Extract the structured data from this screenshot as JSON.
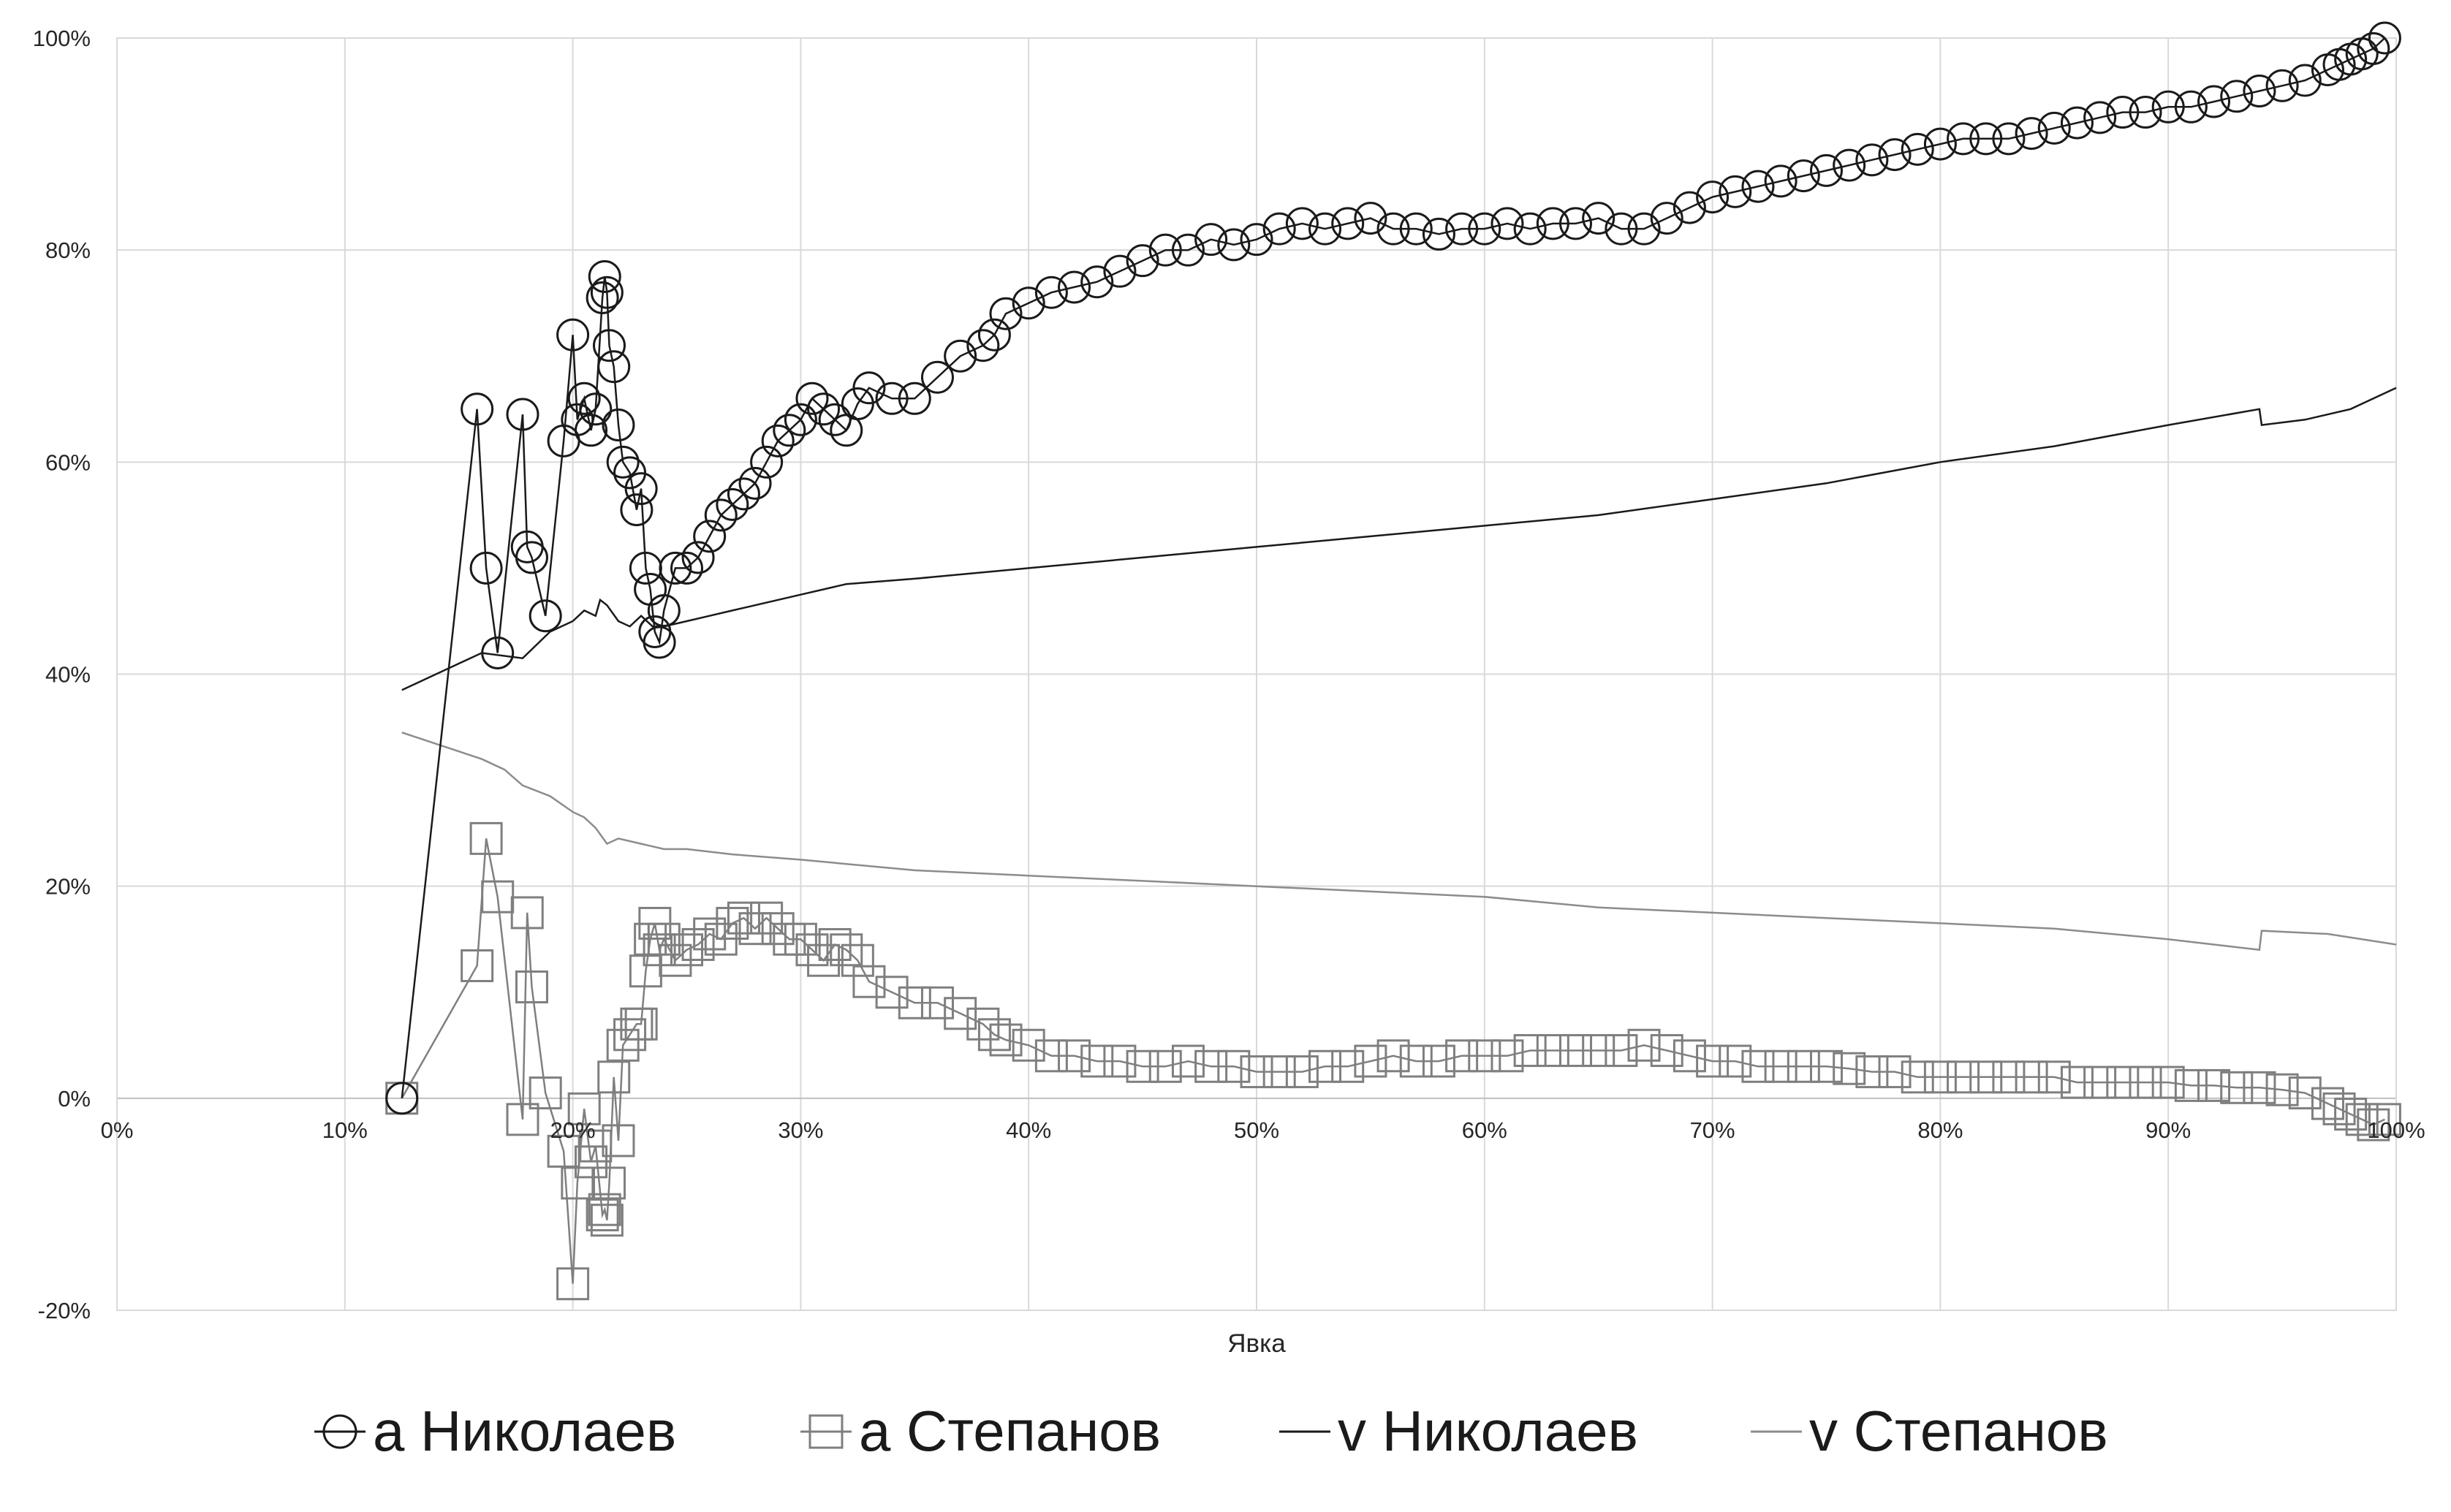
{
  "chart_data": {
    "type": "scatter",
    "title": "",
    "xlabel": "Явка",
    "ylabel": "",
    "xlim": [
      0,
      1
    ],
    "ylim": [
      -0.2,
      1.0
    ],
    "grid": true,
    "legend_position": "bottom",
    "x_ticks": [
      "0%",
      "10%",
      "20%",
      "30%",
      "40%",
      "50%",
      "60%",
      "70%",
      "80%",
      "90%",
      "100%"
    ],
    "y_ticks": [
      "-20%",
      "0%",
      "20%",
      "40%",
      "60%",
      "80%",
      "100%"
    ],
    "series": [
      {
        "name": "a Николаев",
        "marker": "circle",
        "color": "#1a1a1a",
        "x": [
          0.125,
          0.158,
          0.162,
          0.167,
          0.178,
          0.18,
          0.182,
          0.188,
          0.196,
          0.2,
          0.202,
          0.205,
          0.208,
          0.21,
          0.213,
          0.214,
          0.215,
          0.216,
          0.218,
          0.22,
          0.222,
          0.225,
          0.228,
          0.23,
          0.232,
          0.234,
          0.236,
          0.238,
          0.24,
          0.245,
          0.25,
          0.255,
          0.26,
          0.265,
          0.27,
          0.275,
          0.28,
          0.285,
          0.29,
          0.295,
          0.3,
          0.305,
          0.31,
          0.315,
          0.32,
          0.325,
          0.33,
          0.34,
          0.35,
          0.36,
          0.37,
          0.38,
          0.385,
          0.39,
          0.4,
          0.41,
          0.42,
          0.43,
          0.44,
          0.45,
          0.46,
          0.47,
          0.48,
          0.49,
          0.5,
          0.51,
          0.52,
          0.53,
          0.54,
          0.55,
          0.56,
          0.57,
          0.58,
          0.59,
          0.6,
          0.61,
          0.62,
          0.63,
          0.64,
          0.65,
          0.66,
          0.67,
          0.68,
          0.69,
          0.7,
          0.71,
          0.72,
          0.73,
          0.74,
          0.75,
          0.76,
          0.77,
          0.78,
          0.79,
          0.8,
          0.81,
          0.82,
          0.83,
          0.84,
          0.85,
          0.86,
          0.87,
          0.88,
          0.89,
          0.9,
          0.91,
          0.92,
          0.93,
          0.94,
          0.95,
          0.96,
          0.97,
          0.975,
          0.98,
          0.985,
          0.99,
          0.995
        ],
        "y": [
          0.0,
          0.65,
          0.5,
          0.42,
          0.645,
          0.52,
          0.51,
          0.455,
          0.62,
          0.72,
          0.64,
          0.66,
          0.63,
          0.65,
          0.755,
          0.775,
          0.76,
          0.71,
          0.69,
          0.635,
          0.6,
          0.59,
          0.555,
          0.575,
          0.5,
          0.48,
          0.44,
          0.43,
          0.46,
          0.5,
          0.5,
          0.51,
          0.53,
          0.55,
          0.56,
          0.57,
          0.58,
          0.6,
          0.62,
          0.63,
          0.64,
          0.66,
          0.65,
          0.64,
          0.63,
          0.655,
          0.67,
          0.66,
          0.66,
          0.68,
          0.7,
          0.71,
          0.72,
          0.74,
          0.75,
          0.76,
          0.765,
          0.77,
          0.78,
          0.79,
          0.8,
          0.8,
          0.81,
          0.805,
          0.81,
          0.82,
          0.825,
          0.82,
          0.825,
          0.83,
          0.82,
          0.82,
          0.815,
          0.82,
          0.82,
          0.825,
          0.82,
          0.825,
          0.825,
          0.83,
          0.82,
          0.82,
          0.83,
          0.84,
          0.85,
          0.855,
          0.86,
          0.865,
          0.87,
          0.875,
          0.88,
          0.885,
          0.89,
          0.895,
          0.9,
          0.905,
          0.905,
          0.905,
          0.91,
          0.915,
          0.92,
          0.925,
          0.93,
          0.93,
          0.935,
          0.935,
          0.94,
          0.945,
          0.95,
          0.955,
          0.96,
          0.97,
          0.975,
          0.98,
          0.985,
          0.99,
          1.0
        ]
      },
      {
        "name": "a Степанов",
        "marker": "square",
        "color": "#7f7f7f",
        "x": [
          0.125,
          0.158,
          0.162,
          0.167,
          0.178,
          0.18,
          0.182,
          0.188,
          0.196,
          0.2,
          0.202,
          0.205,
          0.208,
          0.21,
          0.213,
          0.214,
          0.215,
          0.216,
          0.218,
          0.22,
          0.222,
          0.225,
          0.228,
          0.23,
          0.232,
          0.234,
          0.236,
          0.238,
          0.24,
          0.245,
          0.25,
          0.255,
          0.26,
          0.265,
          0.27,
          0.275,
          0.28,
          0.285,
          0.29,
          0.295,
          0.3,
          0.305,
          0.31,
          0.315,
          0.32,
          0.325,
          0.33,
          0.34,
          0.35,
          0.36,
          0.37,
          0.38,
          0.385,
          0.39,
          0.4,
          0.41,
          0.42,
          0.43,
          0.44,
          0.45,
          0.46,
          0.47,
          0.48,
          0.49,
          0.5,
          0.51,
          0.52,
          0.53,
          0.54,
          0.55,
          0.56,
          0.57,
          0.58,
          0.59,
          0.6,
          0.61,
          0.62,
          0.63,
          0.64,
          0.65,
          0.66,
          0.67,
          0.68,
          0.69,
          0.7,
          0.71,
          0.72,
          0.73,
          0.74,
          0.75,
          0.76,
          0.77,
          0.78,
          0.79,
          0.8,
          0.81,
          0.82,
          0.83,
          0.84,
          0.85,
          0.86,
          0.87,
          0.88,
          0.89,
          0.9,
          0.91,
          0.92,
          0.93,
          0.94,
          0.95,
          0.96,
          0.97,
          0.975,
          0.98,
          0.985,
          0.99,
          0.995
        ],
        "y": [
          0.0,
          0.125,
          0.245,
          0.19,
          -0.02,
          0.175,
          0.105,
          0.005,
          -0.05,
          -0.175,
          -0.08,
          -0.01,
          -0.06,
          -0.045,
          -0.11,
          -0.105,
          -0.115,
          -0.08,
          0.02,
          -0.04,
          0.05,
          0.06,
          0.07,
          0.07,
          0.12,
          0.15,
          0.165,
          0.14,
          0.15,
          0.13,
          0.14,
          0.145,
          0.155,
          0.15,
          0.165,
          0.17,
          0.16,
          0.17,
          0.16,
          0.15,
          0.15,
          0.14,
          0.13,
          0.145,
          0.14,
          0.13,
          0.11,
          0.1,
          0.09,
          0.09,
          0.08,
          0.07,
          0.06,
          0.055,
          0.05,
          0.04,
          0.04,
          0.035,
          0.035,
          0.03,
          0.03,
          0.035,
          0.03,
          0.03,
          0.025,
          0.025,
          0.025,
          0.03,
          0.03,
          0.035,
          0.04,
          0.035,
          0.035,
          0.04,
          0.04,
          0.04,
          0.045,
          0.045,
          0.045,
          0.045,
          0.045,
          0.05,
          0.045,
          0.04,
          0.035,
          0.035,
          0.03,
          0.03,
          0.03,
          0.03,
          0.028,
          0.025,
          0.025,
          0.02,
          0.02,
          0.02,
          0.02,
          0.02,
          0.02,
          0.02,
          0.015,
          0.015,
          0.015,
          0.015,
          0.015,
          0.012,
          0.012,
          0.01,
          0.01,
          0.008,
          0.005,
          -0.005,
          -0.01,
          -0.015,
          -0.02,
          -0.025,
          -0.02
        ]
      },
      {
        "name": "v Николаев",
        "marker": "none",
        "color": "#1a1a1a",
        "x": [
          0.125,
          0.16,
          0.178,
          0.19,
          0.2,
          0.205,
          0.21,
          0.212,
          0.215,
          0.22,
          0.225,
          0.23,
          0.235,
          0.24,
          0.25,
          0.26,
          0.27,
          0.28,
          0.3,
          0.32,
          0.35,
          0.4,
          0.45,
          0.5,
          0.55,
          0.6,
          0.65,
          0.7,
          0.75,
          0.8,
          0.85,
          0.9,
          0.94,
          0.941,
          0.96,
          0.98,
          1.0
        ],
        "y": [
          0.385,
          0.42,
          0.415,
          0.44,
          0.45,
          0.46,
          0.455,
          0.47,
          0.465,
          0.45,
          0.445,
          0.455,
          0.445,
          0.445,
          0.45,
          0.455,
          0.46,
          0.465,
          0.475,
          0.485,
          0.49,
          0.5,
          0.51,
          0.52,
          0.53,
          0.54,
          0.55,
          0.565,
          0.58,
          0.6,
          0.615,
          0.635,
          0.65,
          0.635,
          0.64,
          0.65,
          0.67
        ]
      },
      {
        "name": "v Степанов",
        "marker": "none",
        "color": "#8c8c8c",
        "x": [
          0.125,
          0.16,
          0.17,
          0.178,
          0.19,
          0.2,
          0.205,
          0.21,
          0.215,
          0.22,
          0.23,
          0.24,
          0.25,
          0.27,
          0.3,
          0.35,
          0.4,
          0.45,
          0.5,
          0.55,
          0.6,
          0.65,
          0.7,
          0.75,
          0.8,
          0.85,
          0.9,
          0.94,
          0.941,
          0.97,
          1.0
        ],
        "y": [
          0.345,
          0.32,
          0.31,
          0.295,
          0.285,
          0.27,
          0.265,
          0.255,
          0.24,
          0.245,
          0.24,
          0.235,
          0.235,
          0.23,
          0.225,
          0.215,
          0.21,
          0.205,
          0.2,
          0.195,
          0.19,
          0.18,
          0.175,
          0.17,
          0.165,
          0.16,
          0.15,
          0.14,
          0.158,
          0.155,
          0.145
        ]
      }
    ]
  }
}
